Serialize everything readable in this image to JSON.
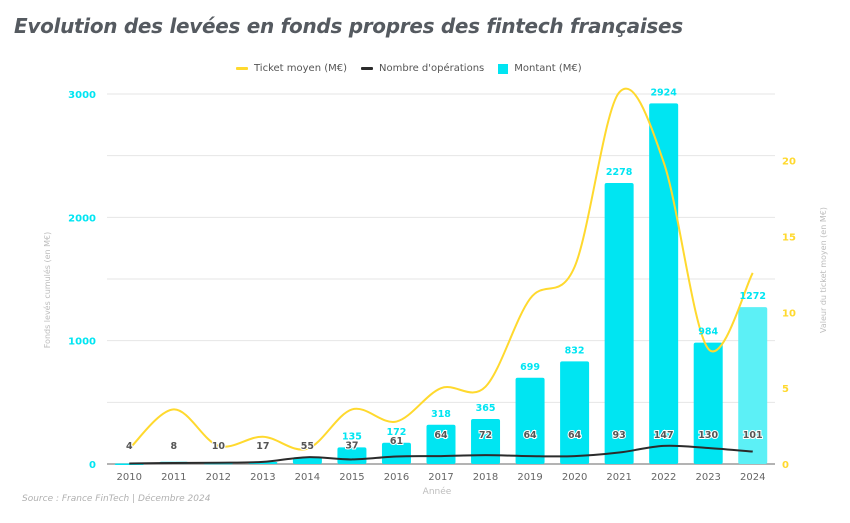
{
  "header": {
    "title": "Evolution des levées en fonds propres des fintech françaises"
  },
  "footer": {
    "source": "Source : France FinTech | Décembre 2024"
  },
  "colors": {
    "bars": "#00e5f2",
    "bars_last": "#5cf0f6",
    "ticket_line": "#ffd92e",
    "ops_line": "#2b2b2b",
    "left_axis_ticks": "#00e5f2",
    "right_axis_ticks": "#ffd92e",
    "gridline": "#e6e6e6"
  },
  "chart_data": {
    "type": "bar",
    "title": "Evolution des levées en fonds propres des fintech françaises",
    "xlabel": "Année",
    "ylabel": "Fonds levés cumulés (en M€)",
    "y2label": "Valeur du ticket moyen (en M€)",
    "legend_position": "top-center",
    "grid": true,
    "categories": [
      "2010",
      "2011",
      "2012",
      "2013",
      "2014",
      "2015",
      "2016",
      "2017",
      "2018",
      "2019",
      "2020",
      "2021",
      "2022",
      "2023",
      "2024"
    ],
    "ylim": [
      0,
      3000
    ],
    "y_ticks": [
      0,
      1000,
      2000,
      3000
    ],
    "y2lim": [
      0,
      24.4
    ],
    "y2_ticks": [
      0,
      5,
      10,
      15,
      20
    ],
    "legend": [
      "Ticket moyen (M€)",
      "Nombre d'opérations",
      "Montant (M€)"
    ],
    "series": [
      {
        "name": "Montant (M€)",
        "type": "bar",
        "axis": "left",
        "values": [
          4,
          18,
          10,
          17,
          55,
          135,
          172,
          318,
          365,
          699,
          832,
          2278,
          2924,
          984,
          1272
        ],
        "labels": [
          "4",
          "18",
          "10",
          "17",
          "55",
          "135",
          "172",
          "318",
          "365",
          "699",
          "832",
          "2278",
          "2924",
          "984",
          "1272"
        ]
      },
      {
        "name": "Nombre d'opérations",
        "type": "line",
        "axis": "left",
        "values": [
          4,
          8,
          10,
          17,
          55,
          37,
          61,
          64,
          72,
          64,
          64,
          93,
          147,
          130,
          101
        ],
        "labels": [
          "4",
          "8",
          "10",
          "17",
          "55",
          "37",
          "61",
          "64",
          "72",
          "64",
          "64",
          "93",
          "147",
          "130",
          "101"
        ]
      },
      {
        "name": "Ticket moyen (M€)",
        "type": "line",
        "axis": "right",
        "values": [
          1.0,
          3.6,
          1.2,
          1.8,
          1.0,
          3.6,
          2.8,
          5.0,
          5.1,
          10.9,
          13.0,
          24.5,
          19.9,
          7.6,
          12.6
        ]
      }
    ]
  }
}
